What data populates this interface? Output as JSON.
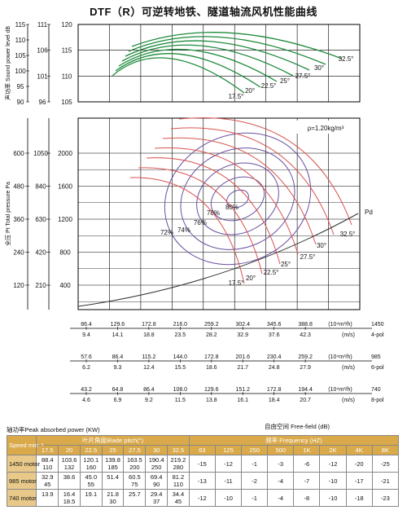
{
  "title": "DTF（R）可逆转地铁、隧道轴流风机性能曲线",
  "chart_data": [
    {
      "type": "line",
      "name_panel": "sound",
      "ylabel": "声功率 Sound power level dB",
      "y_axis_outer": [
        "115",
        "110",
        "105",
        "100",
        "95",
        "90"
      ],
      "y_axis_mid": [
        "111",
        "106",
        "101",
        "96"
      ],
      "y_axis_inner": [
        "120",
        "115",
        "110",
        "105"
      ],
      "blade_pitch_labels": [
        "17.5°",
        "20°",
        "22.5°",
        "25°",
        "27.5°",
        "30°",
        "32.5°"
      ]
    },
    {
      "type": "line",
      "name_panel": "pressure",
      "ylabel": "全压 Pt Total pressure Pa",
      "y_axis_outer": [
        "600",
        "480",
        "360",
        "240",
        "120"
      ],
      "y_axis_mid": [
        "1050",
        "840",
        "630",
        "420",
        "210"
      ],
      "y_axis_inner": [
        "2000",
        "1600",
        "1200",
        "800",
        "400"
      ],
      "density_note": "ρ=1.20kg/m³",
      "pd_label": "Pd",
      "efficiency_labels": [
        "80%",
        "78%",
        "76%",
        "74%",
        "72%"
      ],
      "blade_pitch_labels": [
        "17.5°",
        "20°",
        "22.5°",
        "25°",
        "27.5°",
        "30°",
        "32.5°"
      ]
    }
  ],
  "speed_scales": [
    {
      "speed": "1450",
      "unit_flow": "(10⁴m³/h)",
      "unit_velocity": "(m/s)",
      "motor": "4-pol",
      "flow": [
        "86.4",
        "129.6",
        "172.8",
        "216.0",
        "259.2",
        "302.4",
        "345.6",
        "388.8"
      ],
      "velocity": [
        "9.4",
        "14.1",
        "18.8",
        "23.5",
        "28.2",
        "32.9",
        "37.6",
        "42.3"
      ]
    },
    {
      "speed": "985",
      "unit_flow": "(10⁴m³/h)",
      "unit_velocity": "(m/s)",
      "motor": "6-pol",
      "flow": [
        "57.6",
        "86.4",
        "115.2",
        "144.0",
        "172.8",
        "201.6",
        "230.4",
        "259.2"
      ],
      "velocity": [
        "6.2",
        "9.3",
        "12.4",
        "15.5",
        "18.6",
        "21.7",
        "24.8",
        "27.9"
      ]
    },
    {
      "speed": "740",
      "unit_flow": "(10⁴m³/h)",
      "unit_velocity": "(m/s)",
      "motor": "8-pol",
      "flow": [
        "43.2",
        "64.8",
        "86.4",
        "108.0",
        "129.6",
        "151.2",
        "172.8",
        "194.4"
      ],
      "velocity": [
        "4.6",
        "6.9",
        "9.2",
        "11.5",
        "13.8",
        "16.1",
        "18.4",
        "20.7"
      ]
    }
  ],
  "free_field": "自由空间  Free-field (dB)",
  "table": {
    "caption": "轴功率Peak absorbed power (KW)",
    "head_speed": "Speed min⁻¹",
    "head_blade": "叶片角度Blade pitch(°)",
    "head_freq": "频率  Frequency (HZ)",
    "pitches": [
      "17.5",
      "20",
      "22.5",
      "25",
      "27.5",
      "30",
      "32.5"
    ],
    "freqs": [
      "63",
      "125",
      "250",
      "500",
      "1K",
      "2K",
      "4K",
      "8K"
    ],
    "rows": [
      {
        "speed": "1450 motor",
        "power": [
          [
            "88.4",
            "110"
          ],
          [
            "103.6",
            "132"
          ],
          [
            "120.1",
            "160"
          ],
          [
            "139.8",
            "185"
          ],
          [
            "163.5",
            "200"
          ],
          [
            "190.4",
            "250"
          ],
          [
            "219.2",
            "280"
          ]
        ],
        "freq": [
          "-15",
          "-12",
          "-1",
          "-3",
          "-6",
          "-12",
          "-20",
          "-25"
        ]
      },
      {
        "speed": "985 motor",
        "power": [
          [
            "32.9",
            "45"
          ],
          [
            "38.6",
            ""
          ],
          [
            "45.0",
            "55"
          ],
          [
            "51.4",
            ""
          ],
          [
            "60.5",
            "75"
          ],
          [
            "69.4",
            "90"
          ],
          [
            "81.2",
            "110"
          ]
        ],
        "freq": [
          "-13",
          "-11",
          "-2",
          "-4",
          "-7",
          "-10",
          "-17",
          "-21"
        ]
      },
      {
        "speed": "740 motor",
        "power": [
          [
            "13.9",
            ""
          ],
          [
            "16.4",
            "18.5"
          ],
          [
            "19.1",
            ""
          ],
          [
            "21.8",
            "30"
          ],
          [
            "25.7",
            ""
          ],
          [
            "29.4",
            "37"
          ],
          [
            "34.4",
            "45"
          ]
        ],
        "freq": [
          "-12",
          "-10",
          "-1",
          "-4",
          "-8",
          "-10",
          "-18",
          "-23"
        ]
      }
    ]
  },
  "colors": {
    "sound_curve": "#1e8a3c",
    "pressure_curve": "#d9534f",
    "efficiency": "#6a4fa0",
    "grid": "#000000",
    "table_header": "#d9a94a"
  }
}
